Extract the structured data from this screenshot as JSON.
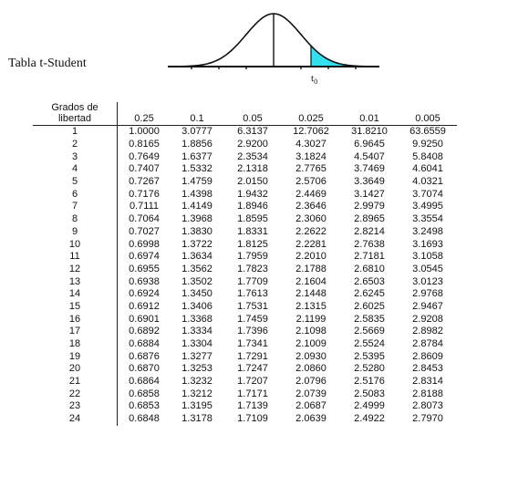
{
  "header": {
    "title": "Tabla t-Student",
    "curve_label": "t",
    "curve_label_sub": "0",
    "shade_color": "#33e0ee"
  },
  "table": {
    "df_header_line1": "Grados de",
    "df_header_line2": "libertad",
    "alphas": [
      "0.25",
      "0.1",
      "0.05",
      "0.025",
      "0.01",
      "0.005"
    ],
    "rows": [
      [
        "1",
        "1.0000",
        "3.0777",
        "6.3137",
        "12.7062",
        "31.8210",
        "63.6559"
      ],
      [
        "2",
        "0.8165",
        "1.8856",
        "2.9200",
        "4.3027",
        "6.9645",
        "9.9250"
      ],
      [
        "3",
        "0.7649",
        "1.6377",
        "2.3534",
        "3.1824",
        "4.5407",
        "5.8408"
      ],
      [
        "4",
        "0.7407",
        "1.5332",
        "2.1318",
        "2.7765",
        "3.7469",
        "4.6041"
      ],
      [
        "5",
        "0.7267",
        "1.4759",
        "2.0150",
        "2.5706",
        "3.3649",
        "4.0321"
      ],
      [
        "6",
        "0.7176",
        "1.4398",
        "1.9432",
        "2.4469",
        "3.1427",
        "3.7074"
      ],
      [
        "7",
        "0.7111",
        "1.4149",
        "1.8946",
        "2.3646",
        "2.9979",
        "3.4995"
      ],
      [
        "8",
        "0.7064",
        "1.3968",
        "1.8595",
        "2.3060",
        "2.8965",
        "3.3554"
      ],
      [
        "9",
        "0.7027",
        "1.3830",
        "1.8331",
        "2.2622",
        "2.8214",
        "3.2498"
      ],
      [
        "10",
        "0.6998",
        "1.3722",
        "1.8125",
        "2.2281",
        "2.7638",
        "3.1693"
      ],
      [
        "11",
        "0.6974",
        "1.3634",
        "1.7959",
        "2.2010",
        "2.7181",
        "3.1058"
      ],
      [
        "12",
        "0.6955",
        "1.3562",
        "1.7823",
        "2.1788",
        "2.6810",
        "3.0545"
      ],
      [
        "13",
        "0.6938",
        "1.3502",
        "1.7709",
        "2.1604",
        "2.6503",
        "3.0123"
      ],
      [
        "14",
        "0.6924",
        "1.3450",
        "1.7613",
        "2.1448",
        "2.6245",
        "2.9768"
      ],
      [
        "15",
        "0.6912",
        "1.3406",
        "1.7531",
        "2.1315",
        "2.6025",
        "2.9467"
      ],
      [
        "16",
        "0.6901",
        "1.3368",
        "1.7459",
        "2.1199",
        "2.5835",
        "2.9208"
      ],
      [
        "17",
        "0.6892",
        "1.3334",
        "1.7396",
        "2.1098",
        "2.5669",
        "2.8982"
      ],
      [
        "18",
        "0.6884",
        "1.3304",
        "1.7341",
        "2.1009",
        "2.5524",
        "2.8784"
      ],
      [
        "19",
        "0.6876",
        "1.3277",
        "1.7291",
        "2.0930",
        "2.5395",
        "2.8609"
      ],
      [
        "20",
        "0.6870",
        "1.3253",
        "1.7247",
        "2.0860",
        "2.5280",
        "2.8453"
      ],
      [
        "21",
        "0.6864",
        "1.3232",
        "1.7207",
        "2.0796",
        "2.5176",
        "2.8314"
      ],
      [
        "22",
        "0.6858",
        "1.3212",
        "1.7171",
        "2.0739",
        "2.5083",
        "2.8188"
      ],
      [
        "23",
        "0.6853",
        "1.3195",
        "1.7139",
        "2.0687",
        "2.4999",
        "2.8073"
      ],
      [
        "24",
        "0.6848",
        "1.3178",
        "1.7109",
        "2.0639",
        "2.4922",
        "2.7970"
      ]
    ]
  }
}
